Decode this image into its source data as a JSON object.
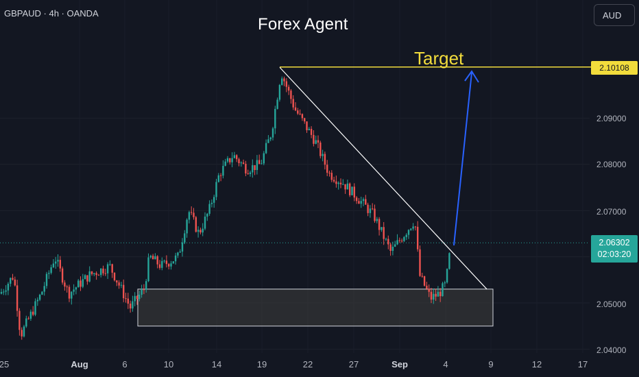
{
  "header": {
    "symbol_title": "GBPAUD · 4h · OANDA",
    "currency_button": "AUD"
  },
  "annotations": {
    "title": "Forex Agent",
    "target_label": "Target",
    "target_color": "#f2dc3c",
    "arrow_color": "#2962ff",
    "trendline_color": "#ffffff",
    "zone_fill": "#3a3a3a"
  },
  "chart_data": {
    "type": "candlestick",
    "symbol": "GBPAUD",
    "timeframe": "4h",
    "broker": "OANDA",
    "currency": "AUD",
    "ylim": [
      2.04,
      2.106
    ],
    "y_ticks": [
      "2.05000",
      "2.06000",
      "2.07000",
      "2.08000",
      "2.09000",
      "2.04000"
    ],
    "x_ticks": [
      "25",
      "Aug",
      "6",
      "10",
      "14",
      "19",
      "22",
      "27",
      "Sep",
      "4",
      "9",
      "12",
      "17"
    ],
    "bold_x_ticks": [
      "Aug",
      "Sep"
    ],
    "up_color": "#26a69a",
    "down_color": "#ef5350",
    "key_prices": [
      2.049,
      2.055,
      2.056,
      2.059,
      2.062,
      2.064,
      2.065,
      2.07,
      2.079,
      2.085,
      2.092,
      2.101,
      2.063,
      2.053,
      2.05,
      2.057
    ],
    "target_price": "2.10108",
    "current_price": "2.06302",
    "countdown": "02:03:20",
    "support_zone": {
      "top": 2.053,
      "bottom": 2.045
    },
    "trendline": {
      "from_price": 2.101,
      "to_price": 2.053
    }
  }
}
